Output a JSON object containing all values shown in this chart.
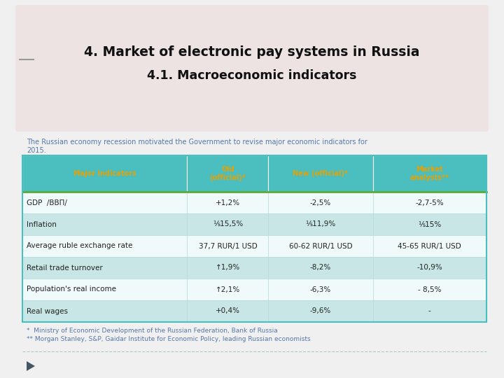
{
  "title_line1": "4. Market of electronic pay systems in Russia",
  "title_line2": "4.1. Macroeconomic indicators",
  "subtitle": "The Russian economy recession motivated the Government to revise major economic indicators for\n2015.",
  "header": [
    "Major Indicators",
    "Old\n(official)*",
    "New (official)*",
    "Market\nanalysts**"
  ],
  "rows": [
    [
      "GDP  /ВВП/",
      "+1,2%",
      "-2,5%",
      "-2,7-5%"
    ],
    [
      "Inflation",
      "⅕15,5%",
      "⅕11,9%",
      "⅕15%"
    ],
    [
      "Average ruble exchange rate",
      "37,7 RUR/1 USD",
      "60-62 RUR/1 USD",
      "45-65 RUR/1 USD"
    ],
    [
      "Retail trade turnover",
      "↑1,9%",
      "-8,2%",
      "-10,9%"
    ],
    [
      "Population's real income",
      "↑2,1%",
      "-6,3%",
      "- 8,5%"
    ],
    [
      "Real wages",
      "+0,4%",
      "-9,6%",
      "-"
    ]
  ],
  "col_align": [
    "left",
    "center",
    "center",
    "center"
  ],
  "footnote1": "*  Ministry of Economic Development of the Russian Federation, Bank of Russia",
  "footnote2": "** Morgan Stanley, S&P, Gaidar Institute for Economic Policy, leading Russian economists",
  "bg_color": "#ede3e3",
  "header_bg": "#4bbfbf",
  "header_text": "#e8a000",
  "alt_row_bg": "#c8e6e6",
  "normal_row_bg": "#f0fafa",
  "table_border": "#4bbfbf",
  "green_line": "#5aaa3a",
  "title_color": "#111111",
  "subtitle_color": "#5577aa",
  "footnote_color": "#5577aa",
  "page_bg": "#f0f0f0",
  "dash_line_color": "#aacccc",
  "triangle_color": "#445566"
}
